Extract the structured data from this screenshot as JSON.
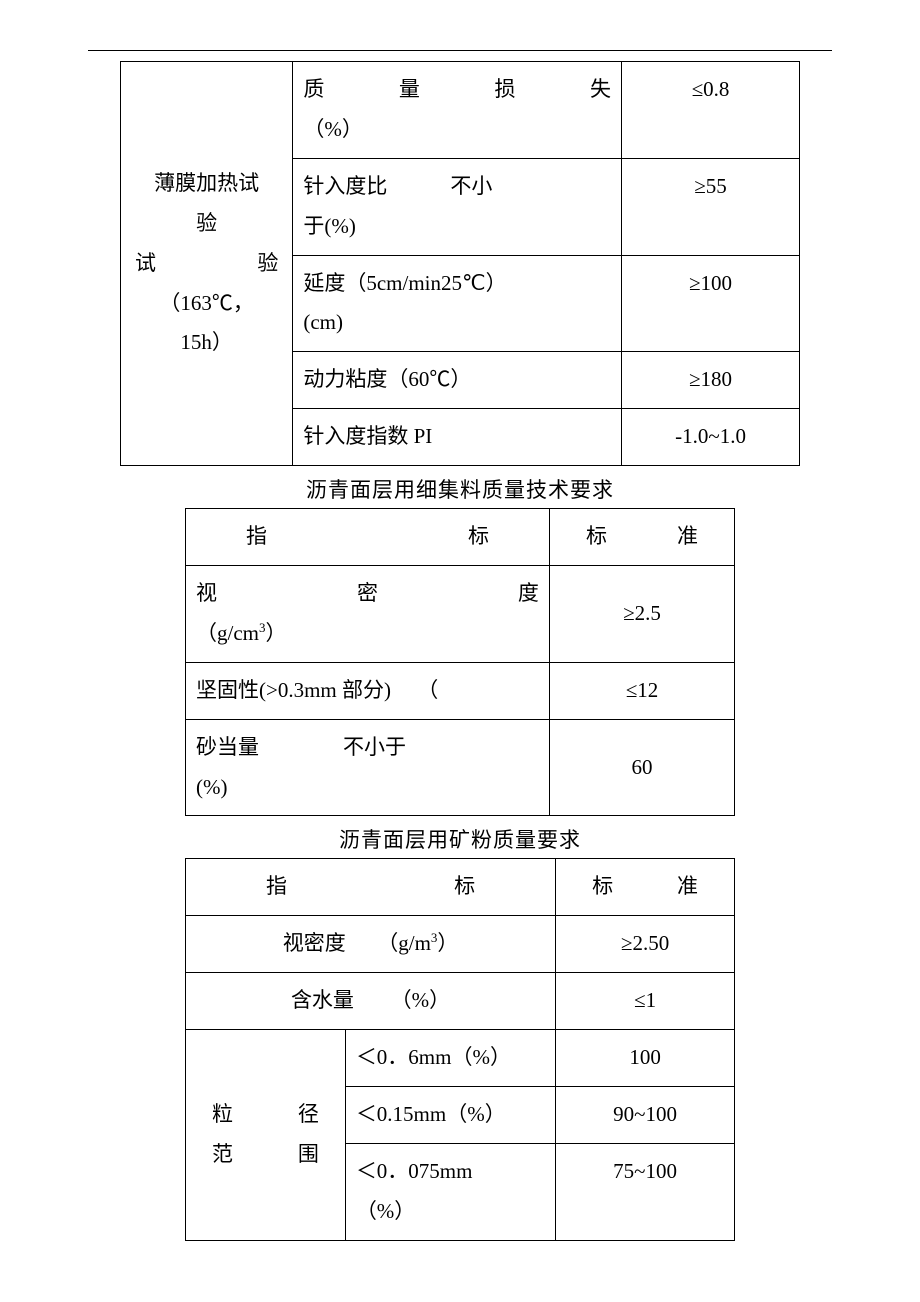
{
  "table1": {
    "rowspan_label_line1": "薄膜加热试",
    "rowspan_label_line2": "验",
    "rowspan_label_line3_left": "试",
    "rowspan_label_line3_right": "验",
    "rowspan_label_line4": "（163℃，",
    "rowspan_label_line5": "15h）",
    "rows": [
      {
        "param_html": "<span style='display:inline-block;width:100%;text-align:justify;text-align-last:justify;'>质量损失</span><br>（%）",
        "val": "≤0.8"
      },
      {
        "param_html": "针入度比&nbsp;&nbsp;&nbsp;&nbsp;&nbsp;&nbsp;&nbsp;&nbsp;&nbsp;&nbsp;&nbsp;&nbsp;不小<br>于(%)",
        "val": "≥55"
      },
      {
        "param_html": "延度（5cm/min25℃）<br>(cm)",
        "val": "≥100"
      },
      {
        "param_html": "动力粘度（60℃）",
        "val": "≥180"
      },
      {
        "param_html": "针入度指数 PI",
        "val": "-1.0~1.0"
      }
    ]
  },
  "caption2": "沥青面层用细集料质量技术要求",
  "table2": {
    "header": {
      "c1_left": "指",
      "c1_right": "标",
      "c2_left": "标",
      "c2_right": "准"
    },
    "rows": [
      {
        "param_html": "<span style='display:inline-block;width:100%;text-align:justify;text-align-last:justify;'>视密度</span><br>（g/cm<sup>3</sup>）",
        "val": "≥2.5"
      },
      {
        "param_html": "坚固性(>0.3mm 部分)&nbsp;&nbsp;&nbsp;&nbsp;&nbsp;（",
        "val": "≤12"
      },
      {
        "param_html": "砂当量&nbsp;&nbsp;&nbsp;&nbsp;&nbsp;&nbsp;&nbsp;&nbsp;&nbsp;&nbsp;&nbsp;&nbsp;&nbsp;&nbsp;&nbsp;&nbsp;不小于<br>(%)",
        "val": "60"
      }
    ]
  },
  "caption3": "沥青面层用矿粉质量要求",
  "table3": {
    "header": {
      "c1_left": "指",
      "c1_right": "标",
      "c2_left": "标",
      "c2_right": "准"
    },
    "row1": {
      "param_html": "视密度&nbsp;&nbsp;&nbsp;&nbsp;&nbsp;&nbsp;（g/m<sup>3</sup>）",
      "val": "≥2.50"
    },
    "row2": {
      "param_html": "含水量&nbsp;&nbsp;&nbsp;&nbsp;&nbsp;&nbsp;&nbsp;（%）",
      "val": "≤1"
    },
    "rowspan_label_l1_left": "粒",
    "rowspan_label_l1_right": "径",
    "rowspan_label_l2_left": "范",
    "rowspan_label_l2_right": "围",
    "sub": [
      {
        "p": "＜0．6mm（%）",
        "v": "100"
      },
      {
        "p": "＜0.15mm（%）",
        "v": "90~100"
      },
      {
        "p": "＜0．075mm<br>（%）",
        "v": "75~100"
      }
    ]
  }
}
